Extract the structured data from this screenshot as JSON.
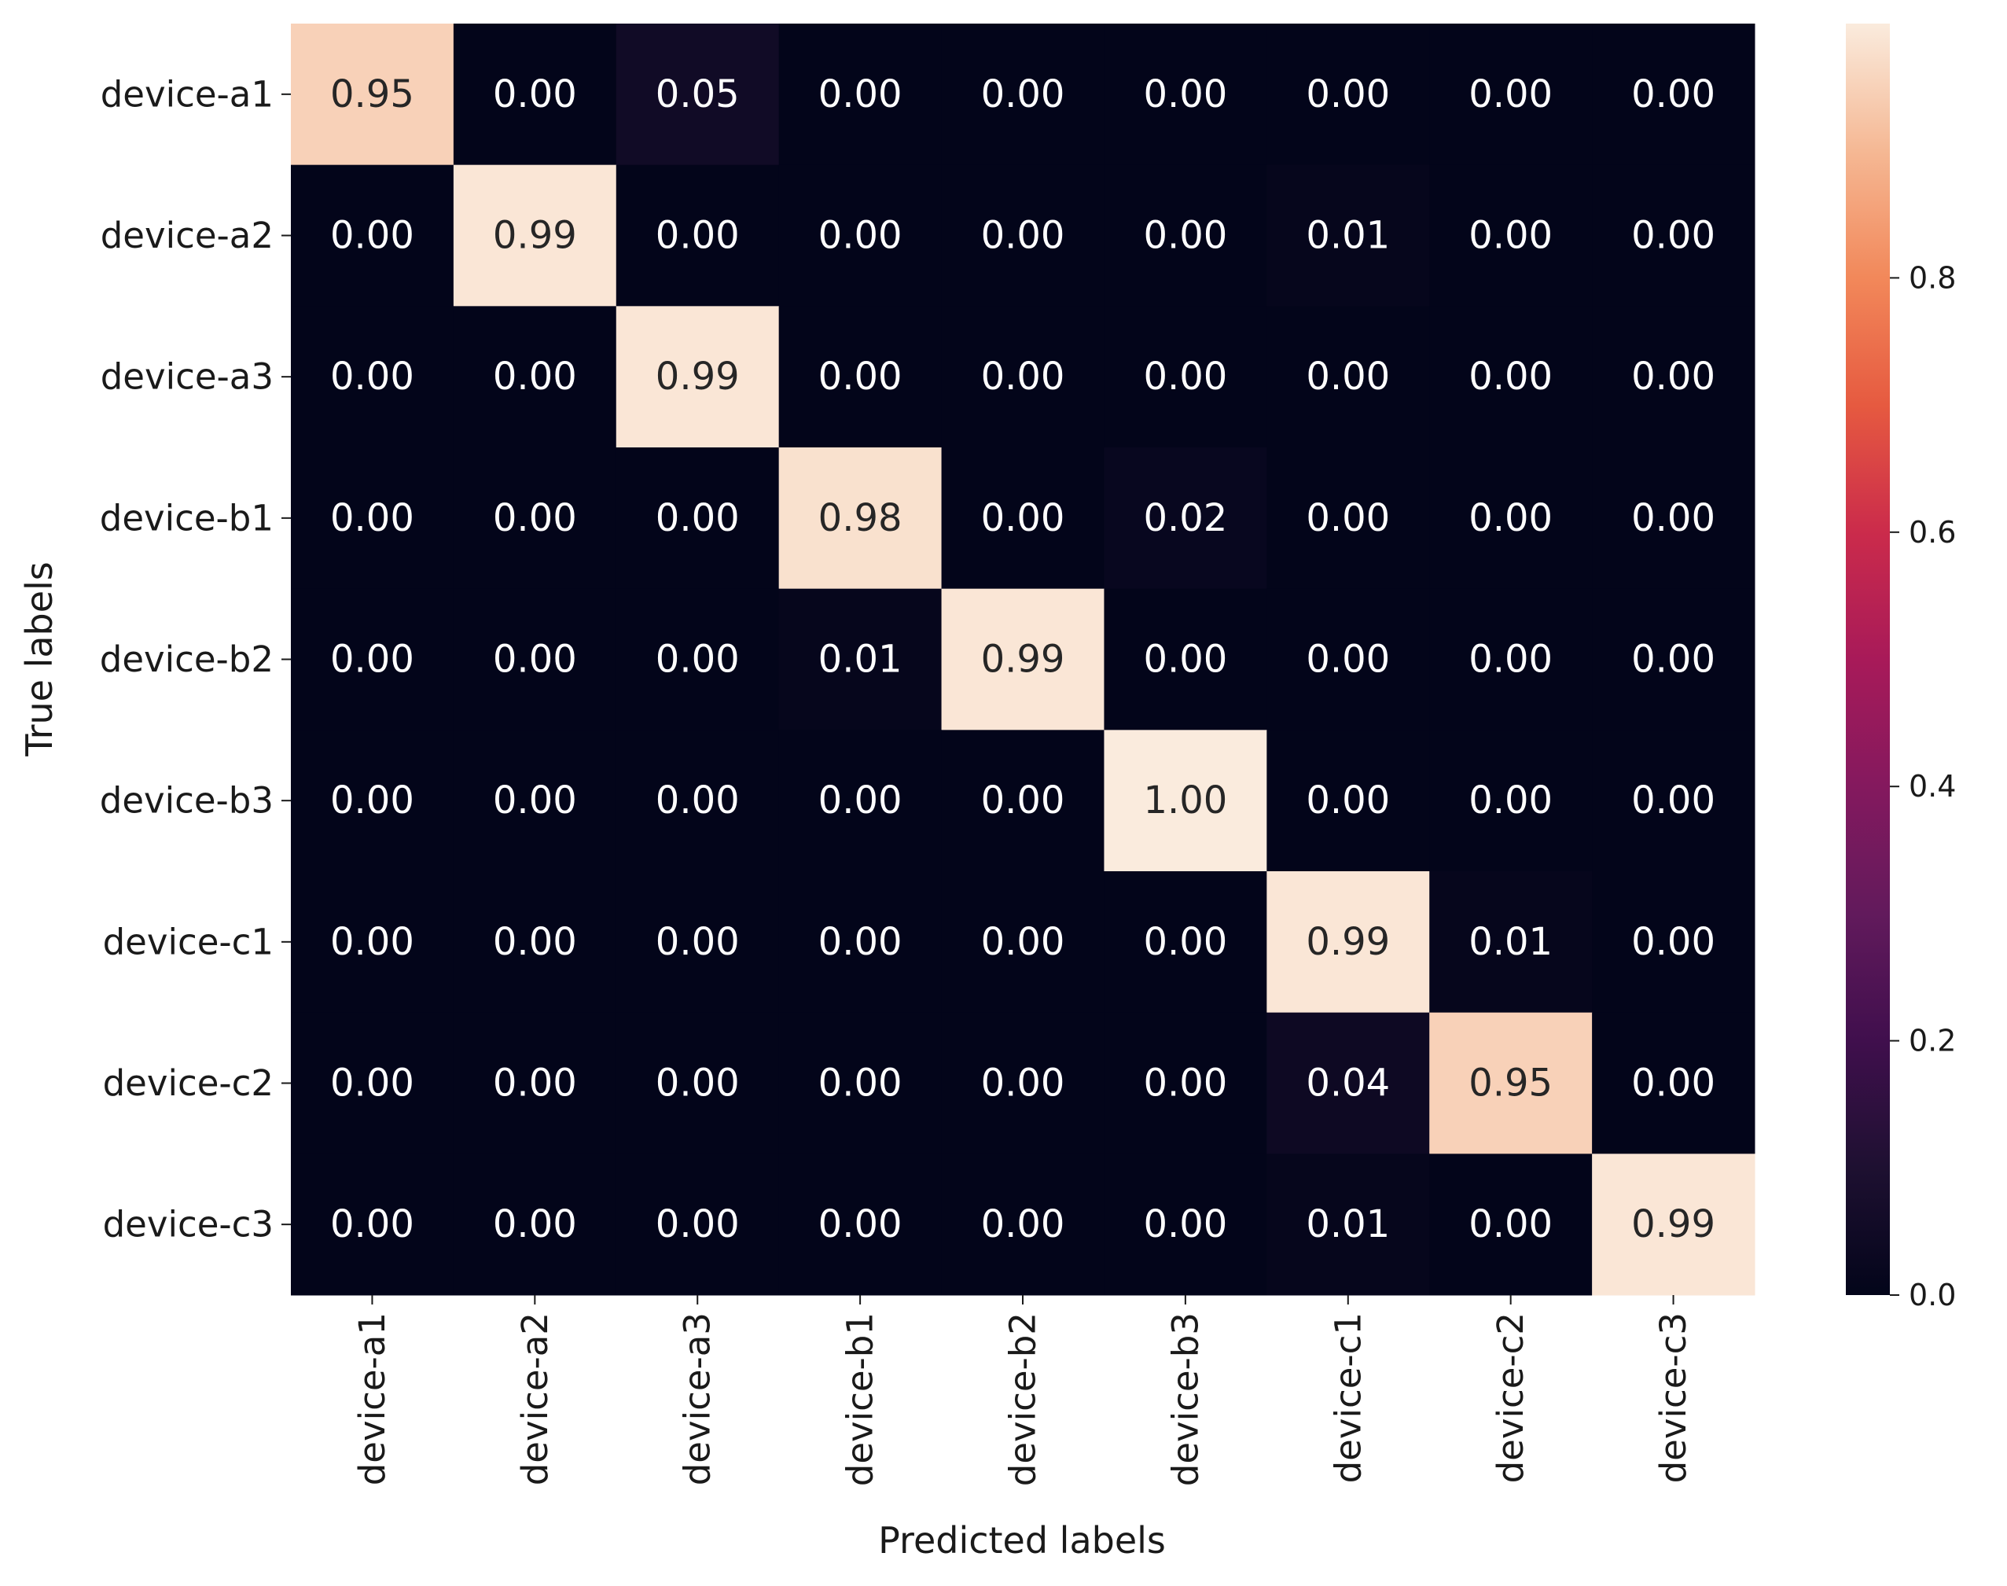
{
  "chart_data": {
    "type": "heatmap",
    "xlabel": "Predicted labels",
    "ylabel": "True labels",
    "x_categories": [
      "device-a1",
      "device-a2",
      "device-a3",
      "device-b1",
      "device-b2",
      "device-b3",
      "device-c1",
      "device-c2",
      "device-c3"
    ],
    "y_categories": [
      "device-a1",
      "device-a2",
      "device-a3",
      "device-b1",
      "device-b2",
      "device-b3",
      "device-c1",
      "device-c2",
      "device-c3"
    ],
    "values": [
      [
        0.95,
        0.0,
        0.05,
        0.0,
        0.0,
        0.0,
        0.0,
        0.0,
        0.0
      ],
      [
        0.0,
        0.99,
        0.0,
        0.0,
        0.0,
        0.0,
        0.01,
        0.0,
        0.0
      ],
      [
        0.0,
        0.0,
        0.99,
        0.0,
        0.0,
        0.0,
        0.0,
        0.0,
        0.0
      ],
      [
        0.0,
        0.0,
        0.0,
        0.98,
        0.0,
        0.02,
        0.0,
        0.0,
        0.0
      ],
      [
        0.0,
        0.0,
        0.0,
        0.01,
        0.99,
        0.0,
        0.0,
        0.0,
        0.0
      ],
      [
        0.0,
        0.0,
        0.0,
        0.0,
        0.0,
        1.0,
        0.0,
        0.0,
        0.0
      ],
      [
        0.0,
        0.0,
        0.0,
        0.0,
        0.0,
        0.0,
        0.99,
        0.01,
        0.0
      ],
      [
        0.0,
        0.0,
        0.0,
        0.0,
        0.0,
        0.0,
        0.04,
        0.95,
        0.0
      ],
      [
        0.0,
        0.0,
        0.0,
        0.0,
        0.0,
        0.0,
        0.01,
        0.0,
        0.99
      ]
    ],
    "value_format": "0.00",
    "colorbar": {
      "colormap": "rocket",
      "range": [
        0,
        1
      ],
      "ticks": [
        0.0,
        0.2,
        0.4,
        0.6,
        0.8
      ],
      "tick_labels": [
        "0.0",
        "0.2",
        "0.4",
        "0.6",
        "0.8"
      ]
    },
    "grid": false,
    "legend": "colorbar-right"
  }
}
